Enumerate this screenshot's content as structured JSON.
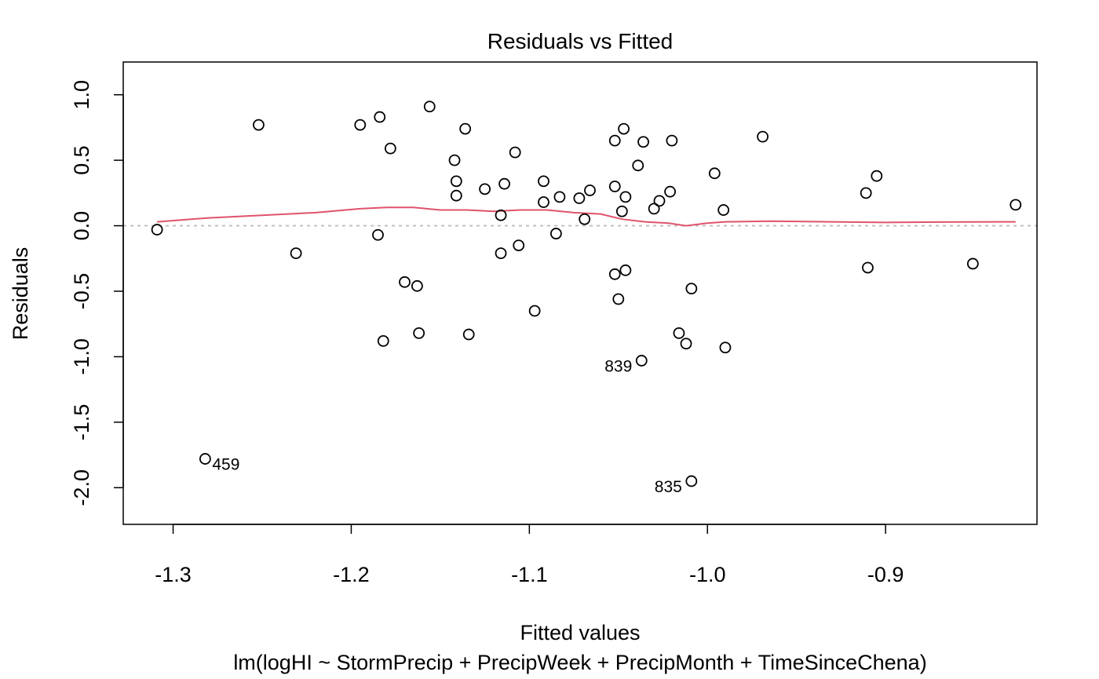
{
  "chart_data": {
    "type": "scatter",
    "title": "Residuals vs Fitted",
    "xlabel": "Fitted values",
    "ylabel": "Residuals",
    "subtitle": "lm(logHI ~ StormPrecip + PrecipWeek + PrecipMonth + TimeSinceChena)",
    "xlim": [
      -1.328,
      -0.815
    ],
    "ylim": [
      -2.28,
      1.25
    ],
    "xticks": [
      -1.3,
      -1.2,
      -1.1,
      -1.0,
      -0.9
    ],
    "xtick_labels": [
      "-1.3",
      "-1.2",
      "-1.1",
      "-1.0",
      "-0.9"
    ],
    "yticks": [
      -2.0,
      -1.5,
      -1.0,
      -0.5,
      0.0,
      0.5,
      1.0
    ],
    "ytick_labels": [
      "-2.0",
      "-1.5",
      "-1.0",
      "-0.5",
      "0.0",
      "0.5",
      "1.0"
    ],
    "zero_line": 0,
    "colors": {
      "points": "#000000",
      "smooth": "#DF536B",
      "zero_line": "#BEBEBE"
    },
    "points": [
      {
        "x": -1.309,
        "y": -0.03
      },
      {
        "x": -1.252,
        "y": 0.77
      },
      {
        "x": -1.231,
        "y": -0.21
      },
      {
        "x": -1.195,
        "y": 0.77
      },
      {
        "x": -1.184,
        "y": 0.83
      },
      {
        "x": -1.185,
        "y": -0.07
      },
      {
        "x": -1.178,
        "y": 0.59
      },
      {
        "x": -1.182,
        "y": -0.88
      },
      {
        "x": -1.17,
        "y": -0.43
      },
      {
        "x": -1.163,
        "y": -0.46
      },
      {
        "x": -1.162,
        "y": -0.82
      },
      {
        "x": -1.156,
        "y": 0.91
      },
      {
        "x": -1.142,
        "y": 0.5
      },
      {
        "x": -1.141,
        "y": 0.34
      },
      {
        "x": -1.141,
        "y": 0.23
      },
      {
        "x": -1.136,
        "y": 0.74
      },
      {
        "x": -1.134,
        "y": -0.83
      },
      {
        "x": -1.125,
        "y": 0.28
      },
      {
        "x": -1.116,
        "y": 0.08
      },
      {
        "x": -1.116,
        "y": -0.21
      },
      {
        "x": -1.114,
        "y": 0.32
      },
      {
        "x": -1.108,
        "y": 0.56
      },
      {
        "x": -1.106,
        "y": -0.15
      },
      {
        "x": -1.097,
        "y": -0.65
      },
      {
        "x": -1.092,
        "y": 0.34
      },
      {
        "x": -1.092,
        "y": 0.18
      },
      {
        "x": -1.085,
        "y": -0.06
      },
      {
        "x": -1.083,
        "y": 0.22
      },
      {
        "x": -1.072,
        "y": 0.21
      },
      {
        "x": -1.069,
        "y": 0.05
      },
      {
        "x": -1.066,
        "y": 0.27
      },
      {
        "x": -1.052,
        "y": 0.65
      },
      {
        "x": -1.052,
        "y": 0.3
      },
      {
        "x": -1.052,
        "y": -0.37
      },
      {
        "x": -1.05,
        "y": -0.56
      },
      {
        "x": -1.048,
        "y": 0.11
      },
      {
        "x": -1.047,
        "y": 0.74
      },
      {
        "x": -1.046,
        "y": 0.22
      },
      {
        "x": -1.046,
        "y": -0.34
      },
      {
        "x": -1.039,
        "y": 0.46
      },
      {
        "x": -1.036,
        "y": 0.64
      },
      {
        "x": -1.037,
        "y": -1.03
      },
      {
        "x": -1.03,
        "y": 0.13
      },
      {
        "x": -1.027,
        "y": 0.19
      },
      {
        "x": -1.021,
        "y": 0.26
      },
      {
        "x": -1.02,
        "y": 0.65
      },
      {
        "x": -1.016,
        "y": -0.82
      },
      {
        "x": -1.012,
        "y": -0.9
      },
      {
        "x": -1.009,
        "y": -0.48
      },
      {
        "x": -1.009,
        "y": -1.95
      },
      {
        "x": -0.996,
        "y": 0.4
      },
      {
        "x": -0.991,
        "y": 0.12
      },
      {
        "x": -0.99,
        "y": -0.93
      },
      {
        "x": -0.969,
        "y": 0.68
      },
      {
        "x": -0.911,
        "y": 0.25
      },
      {
        "x": -0.91,
        "y": -0.32
      },
      {
        "x": -0.905,
        "y": 0.38
      },
      {
        "x": -0.851,
        "y": -0.29
      },
      {
        "x": -0.827,
        "y": 0.16
      },
      {
        "x": -1.282,
        "y": -1.78
      }
    ],
    "smooth_line": [
      {
        "x": -1.309,
        "y": 0.03
      },
      {
        "x": -1.28,
        "y": 0.06
      },
      {
        "x": -1.25,
        "y": 0.08
      },
      {
        "x": -1.22,
        "y": 0.1
      },
      {
        "x": -1.195,
        "y": 0.13
      },
      {
        "x": -1.18,
        "y": 0.14
      },
      {
        "x": -1.165,
        "y": 0.14
      },
      {
        "x": -1.15,
        "y": 0.12
      },
      {
        "x": -1.135,
        "y": 0.12
      },
      {
        "x": -1.12,
        "y": 0.11
      },
      {
        "x": -1.105,
        "y": 0.12
      },
      {
        "x": -1.09,
        "y": 0.12
      },
      {
        "x": -1.075,
        "y": 0.1
      },
      {
        "x": -1.06,
        "y": 0.09
      },
      {
        "x": -1.048,
        "y": 0.05
      },
      {
        "x": -1.035,
        "y": 0.03
      },
      {
        "x": -1.022,
        "y": 0.02
      },
      {
        "x": -1.012,
        "y": 0.0
      },
      {
        "x": -1.0,
        "y": 0.02
      },
      {
        "x": -0.99,
        "y": 0.03
      },
      {
        "x": -0.965,
        "y": 0.035
      },
      {
        "x": -0.93,
        "y": 0.03
      },
      {
        "x": -0.9,
        "y": 0.025
      },
      {
        "x": -0.87,
        "y": 0.028
      },
      {
        "x": -0.827,
        "y": 0.03
      }
    ],
    "labeled_points": [
      {
        "label": "459",
        "x": -1.282,
        "y": -1.78,
        "side": "right"
      },
      {
        "label": "839",
        "x": -1.037,
        "y": -1.03,
        "side": "left"
      },
      {
        "label": "835",
        "x": -1.009,
        "y": -1.95,
        "side": "left"
      }
    ]
  }
}
